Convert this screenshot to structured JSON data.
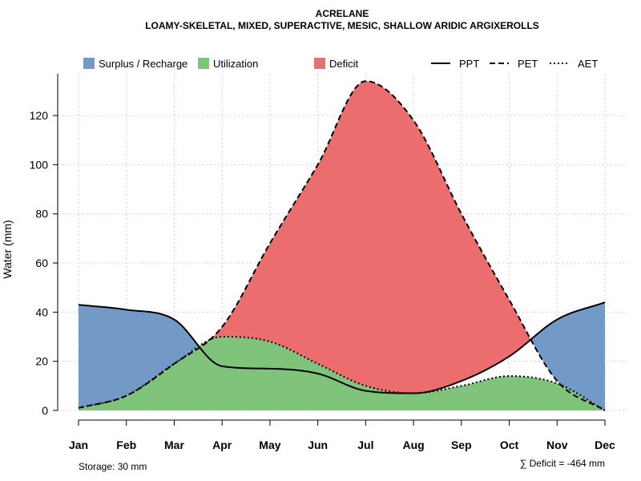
{
  "chart_data": {
    "type": "area",
    "title": "ACRELANE",
    "subtitle": "LOAMY-SKELETAL, MIXED, SUPERACTIVE, MESIC, SHALLOW ARIDIC ARGIXEROLLS",
    "ylabel": "Water (mm)",
    "xlabel": "",
    "categories": [
      "Jan",
      "Feb",
      "Mar",
      "Apr",
      "May",
      "Jun",
      "Jul",
      "Aug",
      "Sep",
      "Oct",
      "Nov",
      "Dec"
    ],
    "ylim": [
      0,
      137
    ],
    "yticks": [
      0,
      20,
      40,
      60,
      80,
      100,
      120
    ],
    "grid": true,
    "series": [
      {
        "name": "PPT",
        "style": "solid",
        "values": [
          43,
          41,
          37,
          18,
          17,
          15,
          8,
          7,
          12,
          22,
          37,
          44
        ]
      },
      {
        "name": "PET",
        "style": "dashed",
        "values": [
          1,
          6,
          19,
          34,
          68,
          100,
          134,
          118,
          80,
          45,
          12,
          0
        ]
      },
      {
        "name": "AET",
        "style": "dotted",
        "values": [
          1,
          6,
          19,
          30,
          28,
          19,
          10,
          7,
          10,
          14,
          11,
          0
        ]
      }
    ],
    "legend": {
      "placement": "top",
      "items": [
        {
          "label": "Surplus / Recharge",
          "kind": "fill",
          "color": "#7399C6"
        },
        {
          "label": "Utilization",
          "kind": "fill",
          "color": "#7FC47A"
        },
        {
          "label": "Deficit",
          "kind": "fill",
          "color": "#EB6D6D"
        },
        {
          "label": "PPT",
          "kind": "line",
          "style": "solid"
        },
        {
          "label": "PET",
          "kind": "line",
          "style": "dashed"
        },
        {
          "label": "AET",
          "kind": "line",
          "style": "dotted"
        }
      ]
    },
    "annotations": {
      "storage": "Storage: 30 mm",
      "deficit": "∑ Deficit = -464 mm"
    }
  }
}
